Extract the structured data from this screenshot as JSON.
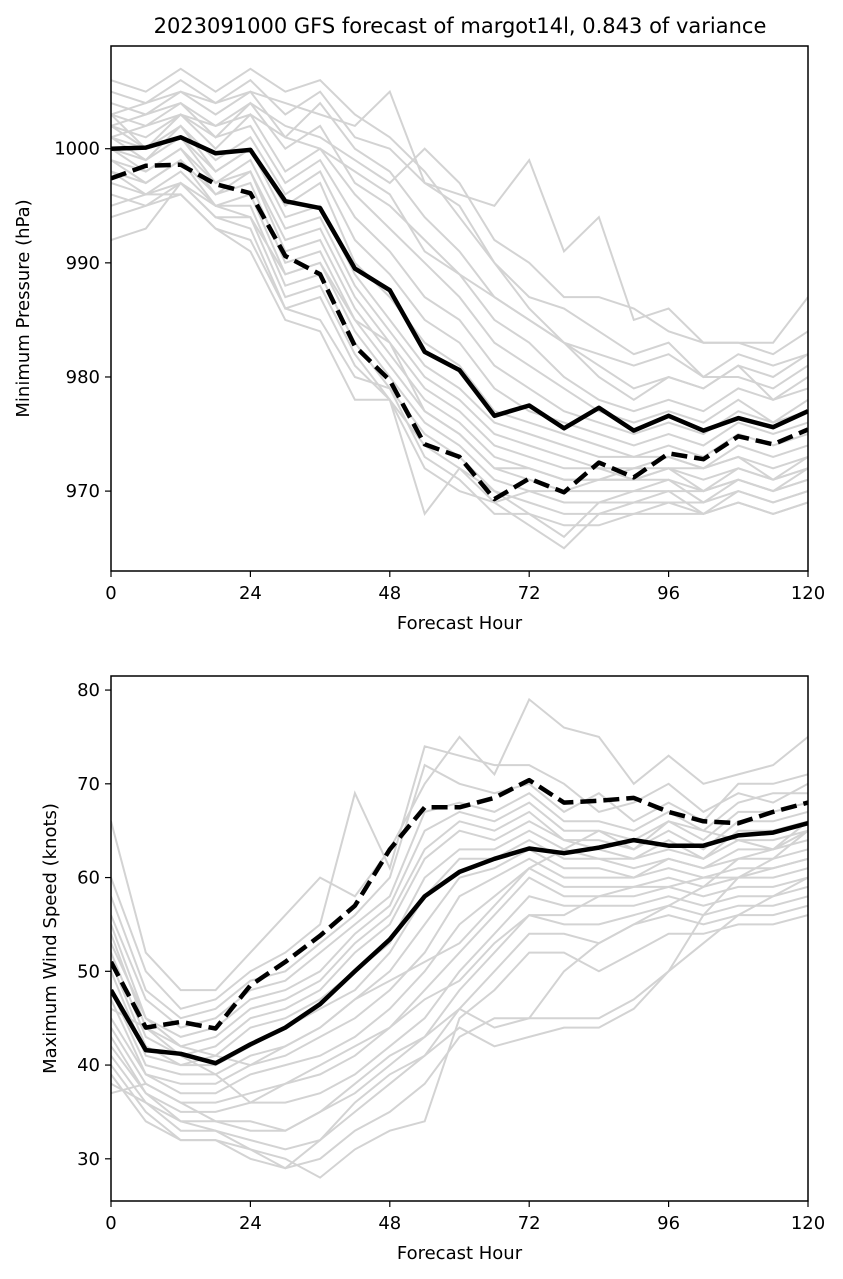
{
  "figure": {
    "title": "2023091000 GFS forecast of margot14l, 0.843 of variance"
  },
  "colors": {
    "ensemble": "#d3d3d3",
    "mean": "#000000",
    "dashed": "#000000"
  },
  "chart_data": [
    {
      "type": "line",
      "title": "2023091000 GFS forecast of margot14l, 0.843 of variance",
      "xlabel": "Forecast Hour",
      "ylabel": "Minimum Pressure (hPa)",
      "xlim": [
        0,
        120
      ],
      "ylim": [
        963,
        1009
      ],
      "xticks": [
        0,
        24,
        48,
        72,
        96,
        120
      ],
      "yticks": [
        970,
        980,
        990,
        1000
      ],
      "grid": false,
      "legend": "none",
      "x": [
        0,
        6,
        12,
        18,
        24,
        30,
        36,
        42,
        48,
        54,
        60,
        66,
        72,
        78,
        84,
        90,
        96,
        102,
        108,
        114,
        120
      ],
      "series": [
        {
          "style": "solid",
          "color": "#000000",
          "values": [
            1000.0,
            1000.1,
            1001.0,
            999.6,
            999.9,
            995.4,
            994.8,
            989.5,
            987.6,
            982.2,
            980.6,
            976.6,
            977.5,
            975.5,
            977.3,
            975.3,
            976.6,
            975.3,
            976.4,
            975.6,
            977.0
          ]
        },
        {
          "style": "dashed",
          "color": "#000000",
          "values": [
            997.4,
            998.5,
            998.6,
            996.9,
            996.1,
            990.6,
            989.0,
            982.7,
            979.7,
            974.1,
            973.0,
            969.3,
            971.1,
            969.9,
            972.5,
            971.2,
            973.3,
            972.8,
            974.8,
            974.1,
            975.4
          ]
        }
      ],
      "ensemble": [
        [
          1006,
          1005,
          1007,
          1005,
          1007,
          1005,
          1006,
          1003,
          1001,
          998,
          994,
          990,
          986,
          983,
          981,
          979,
          980,
          979,
          981,
          978,
          980
        ],
        [
          1005,
          1004,
          1006,
          1004,
          1006,
          1003,
          1005,
          1001,
          1000,
          997,
          995,
          990,
          987,
          986,
          984,
          982,
          983,
          980,
          980,
          979,
          981
        ],
        [
          1004,
          1003,
          1005,
          1003,
          1005,
          1001,
          1004,
          1000,
          998,
          994,
          991,
          987,
          985,
          983,
          980,
          978,
          980,
          979,
          981,
          980,
          982
        ],
        [
          1003,
          1002,
          1004,
          1001,
          1004,
          1000,
          1002,
          997,
          995,
          992,
          989,
          985,
          983,
          980,
          978,
          977,
          978,
          977,
          979,
          978,
          979
        ],
        [
          1003,
          1000,
          1003,
          1000,
          1003,
          998,
          1000,
          996,
          993,
          990,
          987,
          983,
          981,
          979,
          977,
          976,
          977,
          976,
          978,
          976,
          978
        ],
        [
          1002,
          1001,
          1003,
          1001,
          1002,
          997,
          999,
          994,
          991,
          987,
          985,
          981,
          979,
          977,
          976,
          975,
          976,
          975,
          977,
          976,
          977
        ],
        [
          1002,
          1000,
          1002,
          999,
          1001,
          996,
          998,
          992,
          989,
          985,
          983,
          979,
          977,
          976,
          975,
          974,
          975,
          974,
          976,
          975,
          976
        ],
        [
          1001,
          999,
          1002,
          998,
          1000,
          995,
          997,
          990,
          987,
          983,
          981,
          977,
          976,
          975,
          974,
          973,
          974,
          973,
          975,
          974,
          975
        ],
        [
          1001,
          1000,
          1001,
          998,
          1000,
          994,
          995,
          989,
          985,
          981,
          979,
          976,
          975,
          974,
          973,
          973,
          973,
          972,
          974,
          973,
          974
        ],
        [
          1000,
          999,
          1001,
          997,
          999,
          993,
          994,
          988,
          984,
          980,
          978,
          975,
          974,
          973,
          972,
          972,
          973,
          972,
          973,
          972,
          973
        ],
        [
          1000,
          998,
          1000,
          997,
          998,
          992,
          993,
          987,
          983,
          979,
          977,
          974,
          973,
          972,
          972,
          971,
          972,
          971,
          972,
          971,
          972
        ],
        [
          999,
          998,
          1000,
          996,
          998,
          991,
          992,
          986,
          982,
          978,
          976,
          973,
          972,
          971,
          971,
          971,
          971,
          970,
          972,
          971,
          972
        ],
        [
          999,
          997,
          999,
          996,
          997,
          990,
          991,
          985,
          981,
          977,
          975,
          972,
          971,
          970,
          970,
          970,
          970,
          970,
          971,
          970,
          971
        ],
        [
          998,
          997,
          999,
          995,
          996,
          989,
          990,
          984,
          980,
          976,
          974,
          971,
          970,
          969,
          969,
          969,
          969,
          969,
          970,
          969,
          970
        ],
        [
          998,
          996,
          998,
          995,
          995,
          988,
          989,
          983,
          979,
          975,
          973,
          970,
          969,
          968,
          968,
          968,
          969,
          968,
          969,
          968,
          969
        ],
        [
          997,
          996,
          997,
          994,
          994,
          987,
          988,
          982,
          978,
          974,
          972,
          970,
          968,
          967,
          967,
          968,
          968,
          968,
          969,
          968,
          969
        ],
        [
          996,
          995,
          997,
          994,
          993,
          986,
          987,
          981,
          978,
          968,
          972,
          969,
          967,
          965,
          968,
          969,
          970,
          968,
          970,
          969,
          970
        ],
        [
          995,
          996,
          996,
          993,
          992,
          986,
          985,
          980,
          979,
          973,
          971,
          968,
          968,
          966,
          969,
          970,
          971,
          969,
          971,
          970,
          971
        ],
        [
          994,
          995,
          996,
          993,
          991,
          985,
          984,
          978,
          978,
          972,
          970,
          969,
          970,
          970,
          971,
          971,
          972,
          970,
          971,
          970,
          972
        ],
        [
          992,
          993,
          997,
          995,
          994,
          989,
          990,
          985,
          983,
          977,
          975,
          972,
          972,
          971,
          971,
          972,
          972,
          972,
          973,
          971,
          973
        ],
        [
          1003,
          1004,
          1005,
          1004,
          1005,
          1004,
          1003,
          1002,
          1005,
          997,
          996,
          995,
          999,
          991,
          994,
          985,
          986,
          983,
          983,
          983,
          987
        ],
        [
          1002,
          1003,
          1004,
          1002,
          1004,
          1002,
          1001,
          999,
          997,
          1000,
          997,
          992,
          990,
          987,
          987,
          986,
          984,
          983,
          983,
          982,
          984
        ],
        [
          1001,
          1002,
          1003,
          1002,
          1003,
          1001,
          1000,
          998,
          996,
          991,
          989,
          987,
          985,
          983,
          982,
          981,
          982,
          980,
          982,
          981,
          982
        ]
      ]
    },
    {
      "type": "line",
      "title": "",
      "xlabel": "Forecast Hour",
      "ylabel": "Maximum Wind Speed (knots)",
      "xlim": [
        0,
        120
      ],
      "ylim": [
        25.5,
        81.5
      ],
      "xticks": [
        0,
        24,
        48,
        72,
        96,
        120
      ],
      "yticks": [
        30,
        40,
        50,
        60,
        70,
        80
      ],
      "grid": false,
      "legend": "none",
      "x": [
        0,
        6,
        12,
        18,
        24,
        30,
        36,
        42,
        48,
        54,
        60,
        66,
        72,
        78,
        84,
        90,
        96,
        102,
        108,
        114,
        120
      ],
      "series": [
        {
          "style": "solid",
          "color": "#000000",
          "values": [
            48.0,
            41.6,
            41.2,
            40.2,
            42.2,
            44.0,
            46.5,
            50.0,
            53.4,
            58.0,
            60.6,
            62.0,
            63.1,
            62.6,
            63.2,
            64.0,
            63.4,
            63.4,
            64.5,
            64.8,
            65.8
          ]
        },
        {
          "style": "dashed",
          "color": "#000000",
          "values": [
            51.0,
            44.0,
            44.6,
            43.9,
            48.5,
            51.0,
            53.8,
            57.0,
            63.0,
            67.5,
            67.5,
            68.5,
            70.4,
            68.0,
            68.2,
            68.5,
            67.0,
            66.0,
            65.8,
            67.0,
            68.0
          ]
        }
      ],
      "ensemble": [
        [
          66,
          52,
          48,
          48,
          52,
          56,
          60,
          58,
          63,
          70,
          75,
          71,
          79,
          76,
          75,
          70,
          73,
          70,
          71,
          72,
          75
        ],
        [
          60,
          50,
          46,
          47,
          50,
          52,
          55,
          69,
          61,
          74,
          73,
          72,
          72,
          70,
          67,
          68,
          70,
          67,
          69,
          68,
          70
        ],
        [
          58,
          48,
          45,
          46,
          49,
          50,
          53,
          56,
          60,
          72,
          70,
          69,
          70,
          67,
          69,
          66,
          68,
          66,
          70,
          70,
          71
        ],
        [
          56,
          47,
          44,
          45,
          48,
          49,
          52,
          55,
          58,
          67,
          68,
          67,
          69,
          66,
          66,
          65,
          67,
          65,
          68,
          69,
          69
        ],
        [
          55,
          45,
          43,
          44,
          47,
          48,
          50,
          54,
          57,
          65,
          67,
          66,
          68,
          65,
          65,
          64,
          66,
          64,
          67,
          67,
          68
        ],
        [
          54,
          44,
          42,
          43,
          46,
          47,
          49,
          53,
          56,
          63,
          66,
          65,
          67,
          64,
          64,
          63,
          65,
          63,
          66,
          66,
          67
        ],
        [
          52,
          43,
          41,
          42,
          45,
          46,
          48,
          52,
          55,
          62,
          65,
          64,
          66,
          64,
          63,
          62,
          64,
          62,
          65,
          65,
          66
        ],
        [
          51,
          42,
          40,
          41,
          44,
          45,
          47,
          50,
          53,
          60,
          63,
          63,
          65,
          63,
          62,
          62,
          63,
          62,
          64,
          64,
          65
        ],
        [
          50,
          41,
          40,
          40,
          42,
          44,
          46,
          48,
          52,
          58,
          62,
          62,
          64,
          62,
          62,
          61,
          62,
          61,
          63,
          63,
          64
        ],
        [
          48,
          40,
          39,
          39,
          41,
          42,
          44,
          47,
          50,
          55,
          60,
          61,
          63,
          61,
          61,
          60,
          62,
          61,
          62,
          62,
          63
        ],
        [
          47,
          39,
          38,
          38,
          40,
          41,
          43,
          45,
          48,
          52,
          58,
          60,
          62,
          60,
          60,
          60,
          61,
          60,
          61,
          61,
          62
        ],
        [
          45,
          39,
          37,
          37,
          39,
          40,
          41,
          43,
          46,
          50,
          55,
          58,
          61,
          59,
          59,
          59,
          60,
          59,
          60,
          60,
          61
        ],
        [
          44,
          38,
          36,
          36,
          37,
          38,
          39,
          41,
          44,
          48,
          52,
          56,
          60,
          58,
          58,
          58,
          59,
          58,
          59,
          59,
          60
        ],
        [
          43,
          37,
          35,
          35,
          36,
          36,
          37,
          39,
          42,
          45,
          50,
          54,
          58,
          57,
          57,
          57,
          58,
          57,
          58,
          58,
          59
        ],
        [
          42,
          37,
          34,
          34,
          34,
          33,
          35,
          37,
          40,
          43,
          48,
          52,
          56,
          55,
          55,
          56,
          57,
          56,
          57,
          57,
          58
        ],
        [
          41,
          36,
          33,
          33,
          32,
          31,
          32,
          35,
          38,
          41,
          46,
          50,
          54,
          54,
          53,
          55,
          56,
          55,
          56,
          56,
          57
        ],
        [
          40,
          35,
          32,
          32,
          31,
          30,
          28,
          31,
          33,
          34,
          45,
          48,
          52,
          52,
          50,
          52,
          54,
          54,
          55,
          55,
          56
        ],
        [
          39,
          34,
          32,
          32,
          30,
          29,
          30,
          33,
          35,
          38,
          43,
          45,
          45,
          45,
          45,
          47,
          50,
          53,
          56,
          58,
          60
        ],
        [
          38,
          36,
          34,
          33,
          31,
          29,
          32,
          36,
          39,
          41,
          44,
          42,
          43,
          44,
          44,
          46,
          50,
          56,
          60,
          62,
          65
        ],
        [
          37,
          38,
          36,
          34,
          33,
          33,
          35,
          38,
          41,
          43,
          46,
          44,
          45,
          50,
          53,
          55,
          57,
          59,
          62,
          63,
          66
        ],
        [
          46,
          44,
          41,
          39,
          36,
          38,
          40,
          42,
          44,
          47,
          49,
          53,
          56,
          56,
          58,
          59,
          59,
          60,
          60,
          61,
          62
        ],
        [
          53,
          45,
          42,
          41,
          40,
          42,
          44,
          47,
          49,
          51,
          53,
          57,
          61,
          63,
          65,
          63,
          66,
          65,
          64,
          63,
          65
        ]
      ]
    }
  ]
}
